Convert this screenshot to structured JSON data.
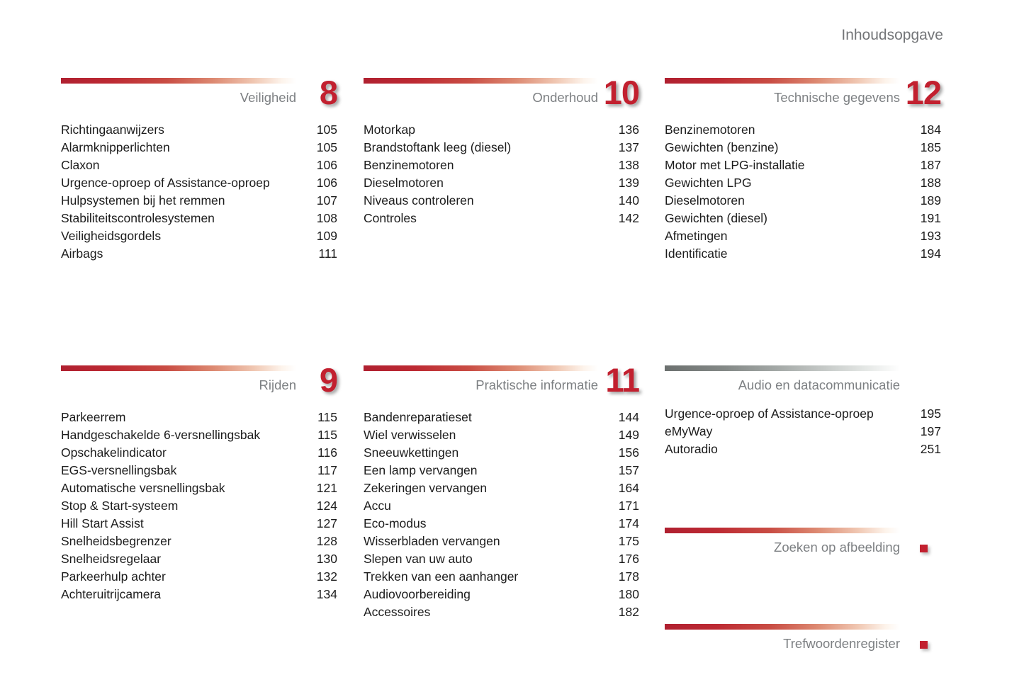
{
  "page": {
    "title": "Inhoudsopgave"
  },
  "colors": {
    "accent_red": "#c2202f",
    "bar_gray_start": "#6c706f",
    "title_gray": "#7d8083",
    "entry_text": "#1c1c1c"
  },
  "sections": [
    {
      "id": "veiligheid",
      "title": "Veiligheid",
      "chapter": "8",
      "bar": "red",
      "marker": false,
      "entries": [
        {
          "label": "Richtingaanwijzers",
          "page": "105"
        },
        {
          "label": "Alarmknipperlichten",
          "page": "105"
        },
        {
          "label": "Claxon",
          "page": "106"
        },
        {
          "label": "Urgence-oproep of Assistance-oproep",
          "page": "106"
        },
        {
          "label": "Hulpsystemen bij het remmen",
          "page": "107"
        },
        {
          "label": "Stabiliteitscontrolesystemen",
          "page": "108"
        },
        {
          "label": "Veiligheidsgordels",
          "page": "109"
        },
        {
          "label": "Airbags",
          "page": "111"
        }
      ]
    },
    {
      "id": "onderhoud",
      "title": "Onderhoud",
      "chapter": "10",
      "bar": "red",
      "marker": false,
      "entries": [
        {
          "label": "Motorkap",
          "page": "136"
        },
        {
          "label": "Brandstoftank leeg (diesel)",
          "page": "137"
        },
        {
          "label": "Benzinemotoren",
          "page": "138"
        },
        {
          "label": "Dieselmotoren",
          "page": "139"
        },
        {
          "label": "Niveaus controleren",
          "page": "140"
        },
        {
          "label": "Controles",
          "page": "142"
        }
      ]
    },
    {
      "id": "technische-gegevens",
      "title": "Technische gegevens",
      "chapter": "12",
      "bar": "red",
      "marker": false,
      "entries": [
        {
          "label": "Benzinemotoren",
          "page": "184"
        },
        {
          "label": "Gewichten (benzine)",
          "page": "185"
        },
        {
          "label": "Motor met LPG-installatie",
          "page": "187"
        },
        {
          "label": "Gewichten LPG",
          "page": "188"
        },
        {
          "label": "Dieselmotoren",
          "page": "189"
        },
        {
          "label": "Gewichten (diesel)",
          "page": "191"
        },
        {
          "label": "Afmetingen",
          "page": "193"
        },
        {
          "label": "Identificatie",
          "page": "194"
        }
      ]
    },
    {
      "id": "rijden",
      "title": "Rijden",
      "chapter": "9",
      "bar": "red",
      "marker": false,
      "entries": [
        {
          "label": "Parkeerrem",
          "page": "115"
        },
        {
          "label": "Handgeschakelde 6-versnellingsbak",
          "page": "115"
        },
        {
          "label": "Opschakelindicator",
          "page": "116"
        },
        {
          "label": "EGS-versnellingsbak",
          "page": "117"
        },
        {
          "label": "Automatische versnellingsbak",
          "page": "121"
        },
        {
          "label": "Stop & Start-systeem",
          "page": "124"
        },
        {
          "label": "Hill Start Assist",
          "page": "127"
        },
        {
          "label": "Snelheidsbegrenzer",
          "page": "128"
        },
        {
          "label": "Snelheidsregelaar",
          "page": "130"
        },
        {
          "label": "Parkeerhulp achter",
          "page": "132"
        },
        {
          "label": "Achteruitrijcamera",
          "page": "134"
        }
      ]
    },
    {
      "id": "praktische-informatie",
      "title": "Praktische informatie",
      "chapter": "11",
      "bar": "red",
      "marker": false,
      "entries": [
        {
          "label": "Bandenreparatieset",
          "page": "144"
        },
        {
          "label": "Wiel verwisselen",
          "page": "149"
        },
        {
          "label": "Sneeuwkettingen",
          "page": "156"
        },
        {
          "label": "Een lamp vervangen",
          "page": "157"
        },
        {
          "label": "Zekeringen vervangen",
          "page": "164"
        },
        {
          "label": "Accu",
          "page": "171"
        },
        {
          "label": "Eco-modus",
          "page": "174"
        },
        {
          "label": "Wisserbladen vervangen",
          "page": "175"
        },
        {
          "label": "Slepen van uw auto",
          "page": "176"
        },
        {
          "label": "Trekken van een aanhanger",
          "page": "178"
        },
        {
          "label": "Audiovoorbereiding",
          "page": "180"
        },
        {
          "label": "Accessoires",
          "page": "182"
        }
      ]
    },
    {
      "id": "audio-en-datacommunicatie",
      "title": "Audio en datacommunicatie",
      "chapter": "",
      "bar": "gray",
      "marker": false,
      "entries": [
        {
          "label": "Urgence-oproep of Assistance-oproep",
          "page": "195"
        },
        {
          "label": "eMyWay",
          "page": "197"
        },
        {
          "label": "Autoradio",
          "page": "251"
        }
      ]
    },
    {
      "id": "zoeken-op-afbeelding",
      "title": "Zoeken op afbeelding",
      "chapter": "",
      "bar": "red",
      "marker": true,
      "entries": []
    },
    {
      "id": "trefwoordenregister",
      "title": "Trefwoordenregister",
      "chapter": "",
      "bar": "red",
      "marker": true,
      "entries": []
    }
  ]
}
